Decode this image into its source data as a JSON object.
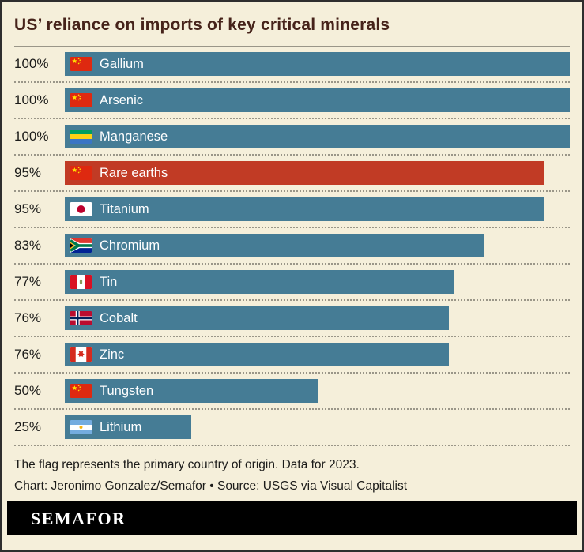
{
  "title": "US’ reliance on imports of key critical minerals",
  "theme": {
    "bg": "#f5efda",
    "border": "#2e2e2e",
    "title": "#46231a",
    "text": "#1c1c1a",
    "separator": "#9a9688"
  },
  "chart_data": {
    "type": "bar",
    "orientation": "horizontal",
    "title": "US’ reliance on imports of key critical minerals",
    "categories": [
      "Gallium",
      "Arsenic",
      "Manganese",
      "Rare earths",
      "Titanium",
      "Chromium",
      "Tin",
      "Cobalt",
      "Zinc",
      "Tungsten",
      "Lithium"
    ],
    "values": [
      100,
      100,
      100,
      95,
      95,
      83,
      77,
      76,
      76,
      50,
      25
    ],
    "value_labels": [
      "100%",
      "100%",
      "100%",
      "95%",
      "95%",
      "83%",
      "77%",
      "76%",
      "76%",
      "50%",
      "25%"
    ],
    "flags": [
      "china",
      "china",
      "gabon",
      "china",
      "japan",
      "south-africa",
      "peru",
      "norway",
      "canada",
      "china",
      "argentina"
    ],
    "highlight_index": 3,
    "bar_color": "#457c95",
    "highlight_color": "#c13b25",
    "xlim": [
      0,
      100
    ],
    "grid": false,
    "legend": false
  },
  "footer": {
    "note": "The flag represents the primary country of origin. Data for 2023.",
    "credit": "Chart: Jeronimo Gonzalez/Semafor • Source: USGS via Visual Capitalist"
  },
  "brand": {
    "logo_text": "SEMAFOR"
  }
}
